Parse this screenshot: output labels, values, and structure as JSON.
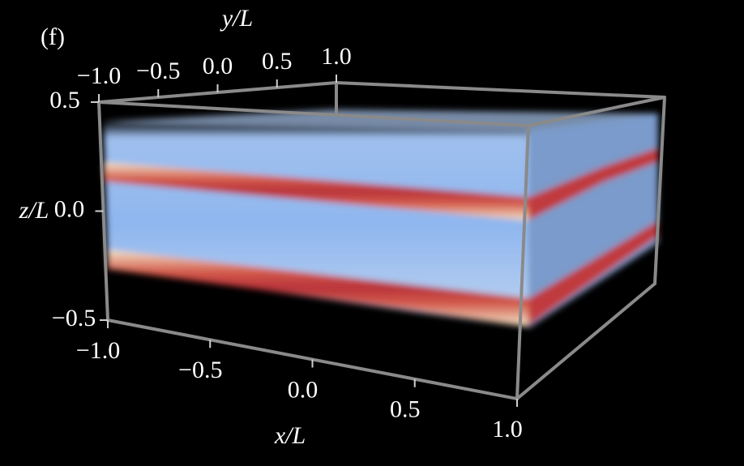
{
  "chart_data": {
    "type": "volume3d",
    "panel_label": "(f)",
    "xlabel": "x/L",
    "ylabel": "y/L",
    "zlabel": "z/L",
    "xlim": [
      -1,
      1
    ],
    "ylim": [
      -1,
      1
    ],
    "zlim": [
      -0.5,
      0.5
    ],
    "xticks": [
      {
        "value": -1,
        "label": "−1.0"
      },
      {
        "value": -0.5,
        "label": "−0.5"
      },
      {
        "value": 0,
        "label": "0.0"
      },
      0.5,
      {
        "value": 1,
        "label": "1.0"
      }
    ],
    "yticks": [
      {
        "value": -1,
        "label": "−1.0"
      },
      {
        "value": -0.5,
        "label": "−0.5"
      },
      {
        "value": 0,
        "label": "0.0"
      },
      0.5,
      {
        "value": 1,
        "label": "1.0"
      }
    ],
    "zticks": [
      {
        "value": -0.5,
        "label": "−0.5"
      },
      {
        "value": 0,
        "label": "0.0"
      },
      0.5
    ]
  }
}
